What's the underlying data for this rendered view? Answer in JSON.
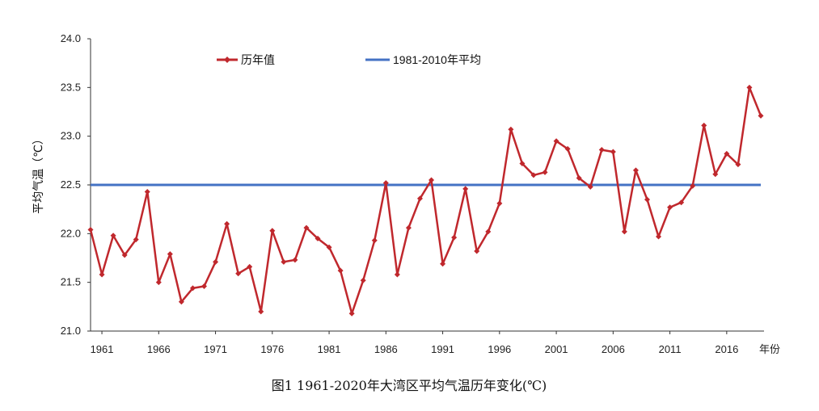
{
  "chart_data": {
    "type": "line",
    "caption": "图1  1961-2020年大湾区平均气温历年变化(℃)",
    "ylabel": "平均气温（℃）",
    "xlabel": "年份",
    "ylim": [
      21.0,
      24.0
    ],
    "yticks": [
      "21.0",
      "21.5",
      "22.0",
      "22.5",
      "23.0",
      "23.5",
      "24.0"
    ],
    "xticks": [
      1961,
      1966,
      1971,
      1976,
      1981,
      1986,
      1991,
      1996,
      2001,
      2006,
      2011,
      2016
    ],
    "x_start": 1960,
    "x_end": 2019,
    "series": [
      {
        "name": "历年值",
        "color": "#C0282D",
        "x": [
          1960,
          1961,
          1962,
          1963,
          1964,
          1965,
          1966,
          1967,
          1968,
          1969,
          1970,
          1971,
          1972,
          1973,
          1974,
          1975,
          1976,
          1977,
          1978,
          1979,
          1980,
          1981,
          1982,
          1983,
          1984,
          1985,
          1986,
          1987,
          1988,
          1989,
          1990,
          1991,
          1992,
          1993,
          1994,
          1995,
          1996,
          1997,
          1998,
          1999,
          2000,
          2001,
          2002,
          2003,
          2004,
          2005,
          2006,
          2007,
          2008,
          2009,
          2010,
          2011,
          2012,
          2013,
          2014,
          2015,
          2016,
          2017,
          2018,
          2019
        ],
        "values": [
          22.04,
          21.58,
          21.98,
          21.78,
          21.94,
          22.43,
          21.5,
          21.79,
          21.3,
          21.44,
          21.46,
          21.71,
          22.1,
          21.59,
          21.66,
          21.2,
          22.03,
          21.71,
          21.73,
          22.06,
          21.95,
          21.86,
          21.62,
          21.18,
          21.52,
          21.93,
          22.52,
          21.58,
          22.06,
          22.36,
          22.55,
          21.69,
          21.96,
          22.46,
          21.82,
          22.02,
          22.31,
          23.07,
          22.72,
          22.6,
          22.63,
          22.95,
          22.87,
          22.57,
          22.48,
          22.86,
          22.84,
          22.02,
          22.65,
          22.35,
          21.97,
          22.27,
          22.32,
          22.49,
          23.11,
          22.61,
          22.82,
          22.71,
          23.5,
          23.21
        ]
      },
      {
        "name": "1981-2010年平均",
        "color": "#4472C4",
        "value": 22.5
      }
    ]
  }
}
